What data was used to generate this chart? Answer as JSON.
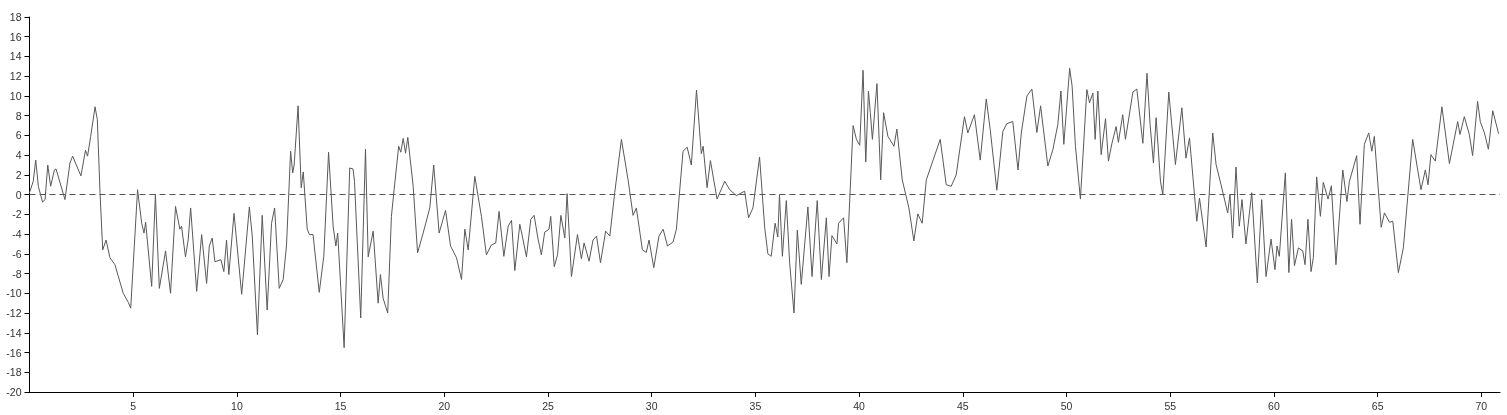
{
  "chart_data": {
    "type": "line",
    "xlim": [
      0,
      70.9
    ],
    "ylim": [
      -20,
      18
    ],
    "xticks": [
      5,
      10,
      15,
      20,
      25,
      30,
      35,
      40,
      45,
      50,
      55,
      60,
      65,
      70
    ],
    "yticks": [
      -20,
      -18,
      -16,
      -14,
      -12,
      -10,
      -8,
      -6,
      -4,
      -2,
      0,
      2,
      4,
      6,
      8,
      10,
      12,
      14,
      16,
      18
    ],
    "grid": false,
    "marker": "none",
    "line_style": "solid",
    "ref_lines": [
      {
        "axis": "y",
        "value": 0,
        "color": "#555555",
        "line_style": "dashed"
      }
    ],
    "series": [
      {
        "color": "#595959",
        "x": [
          0,
          0.18,
          0.3,
          0.43,
          0.63,
          0.75,
          0.88,
          1.02,
          1.2,
          1.28,
          1.71,
          1.95,
          2.08,
          2.48,
          2.7,
          2.8,
          2.95,
          3.16,
          3.27,
          3.4,
          3.53,
          3.69,
          3.88,
          4.12,
          4.52,
          4.76,
          4.88,
          5.21,
          5.41,
          5.52,
          5.6,
          5.89,
          6.07,
          6.26,
          6.56,
          6.8,
          7.04,
          7.25,
          7.33,
          7.52,
          7.65,
          7.77,
          8.06,
          8.3,
          8.54,
          8.67,
          8.81,
          8.94,
          9.23,
          9.37,
          9.5,
          9.61,
          9.86,
          10.23,
          10.44,
          10.6,
          10.74,
          10.99,
          11.22,
          11.46,
          11.67,
          11.82,
          12.04,
          12.23,
          12.39,
          12.59,
          12.69,
          12.76,
          12.95,
          13.1,
          13.2,
          13.39,
          13.5,
          13.67,
          13.97,
          14.19,
          14.42,
          14.64,
          14.77,
          14.86,
          15.17,
          15.44,
          15.6,
          15.67,
          15.97,
          16.2,
          16.33,
          16.57,
          16.81,
          16.92,
          17.05,
          17.27,
          17.45,
          17.58,
          17.8,
          17.9,
          18.02,
          18.13,
          18.24,
          18.5,
          18.71,
          18.98,
          19.3,
          19.49,
          19.75,
          20.06,
          20.3,
          20.59,
          20.83,
          20.99,
          21.15,
          21.47,
          21.79,
          22.03,
          22.27,
          22.48,
          22.64,
          22.87,
          23.08,
          23.24,
          23.4,
          23.64,
          23.77,
          23.96,
          24.17,
          24.33,
          24.52,
          24.68,
          24.84,
          25.05,
          25.13,
          25.3,
          25.46,
          25.62,
          25.81,
          25.92,
          26.13,
          26.42,
          26.61,
          26.74,
          26.98,
          27.17,
          27.34,
          27.53,
          27.78,
          27.98,
          28.22,
          28.54,
          28.86,
          29.1,
          29.26,
          29.55,
          29.74,
          29.87,
          30.1,
          30.35,
          30.55,
          30.76,
          31.03,
          31.19,
          31.51,
          31.71,
          31.91,
          32.16,
          32.39,
          32.48,
          32.67,
          32.83,
          33.15,
          33.52,
          33.76,
          34.08,
          34.48,
          34.67,
          34.88,
          35.2,
          35.45,
          35.6,
          35.76,
          35.95,
          36.08,
          36.16,
          36.3,
          36.49,
          36.65,
          36.86,
          37.02,
          37.21,
          37.53,
          37.73,
          37.98,
          38.18,
          38.42,
          38.55,
          38.69,
          38.93,
          39.01,
          39.25,
          39.41,
          39.71,
          39.87,
          40.03,
          40.19,
          40.32,
          40.45,
          40.54,
          40.64,
          40.86,
          41.04,
          41.18,
          41.39,
          41.68,
          41.82,
          42.08,
          42.4,
          42.64,
          42.83,
          43.04,
          43.24,
          43.91,
          44.2,
          44.44,
          44.68,
          45.08,
          45.24,
          45.56,
          45.84,
          46.13,
          46.32,
          46.64,
          46.93,
          47.12,
          47.41,
          47.66,
          47.82,
          48.09,
          48.33,
          48.57,
          48.75,
          49.1,
          49.34,
          49.58,
          49.73,
          49.87,
          50.15,
          50.27,
          50.43,
          50.67,
          50.98,
          51.11,
          51.27,
          51.38,
          51.51,
          51.67,
          51.88,
          52.02,
          52.19,
          52.39,
          52.5,
          52.71,
          52.84,
          53.2,
          53.39,
          53.68,
          53.88,
          54.03,
          54.19,
          54.32,
          54.53,
          54.64,
          54.93,
          55.25,
          55.56,
          55.76,
          55.93,
          56.28,
          56.41,
          56.73,
          57.05,
          57.21,
          57.45,
          57.77,
          57.88,
          58.01,
          58.17,
          58.33,
          58.46,
          58.65,
          58.93,
          59.2,
          59.41,
          59.62,
          59.86,
          60.05,
          60.15,
          60.26,
          60.55,
          60.72,
          60.85,
          60.99,
          61.18,
          61.39,
          61.5,
          61.64,
          61.79,
          61.9,
          62.06,
          62.24,
          62.38,
          62.61,
          62.77,
          62.99,
          63.32,
          63.52,
          63.64,
          63.99,
          64.15,
          64.36,
          64.57,
          64.72,
          64.84,
          65.17,
          65.33,
          65.57,
          65.73,
          66.0,
          66.24,
          66.69,
          67.09,
          67.3,
          67.43,
          67.57,
          67.78,
          68.1,
          68.46,
          68.86,
          68.97,
          69.18,
          69.42,
          69.58,
          69.82,
          69.95,
          70.15,
          70.34,
          70.55,
          70.83
        ],
        "values": [
          0.2,
          1.35,
          3.5,
          0.8,
          -0.75,
          -0.5,
          3.0,
          0.85,
          2.5,
          2.6,
          -0.5,
          3.2,
          3.9,
          1.9,
          4.5,
          3.9,
          5.9,
          8.9,
          7.6,
          0.2,
          -5.6,
          -4.6,
          -6.4,
          -7.1,
          -10.0,
          -10.9,
          -11.5,
          0.5,
          -2.9,
          -3.9,
          -2.8,
          -9.3,
          0,
          -9.5,
          -5.7,
          -10.0,
          -1.2,
          -3.5,
          -3.2,
          -6.3,
          -4.6,
          -1.35,
          -9.8,
          -4.05,
          -9.0,
          -5.2,
          -4.4,
          -6.8,
          -6.6,
          -7.8,
          -4.6,
          -8.1,
          -1.9,
          -10.1,
          -5.1,
          -1.25,
          -4.2,
          -14.2,
          -2.1,
          -11.7,
          -2.9,
          -1.35,
          -9.5,
          -8.6,
          -5.2,
          4.4,
          2.2,
          3.0,
          9.0,
          0.7,
          2.3,
          -3.5,
          -4.05,
          -4.05,
          -9.9,
          -6.25,
          4.3,
          -3.2,
          -5.2,
          -3.9,
          -15.5,
          2.7,
          2.6,
          1.35,
          -12.5,
          4.6,
          -6.3,
          -3.7,
          -11.0,
          -8.1,
          -10.5,
          -12.0,
          -2.2,
          0.5,
          4.9,
          4.3,
          5.7,
          4.2,
          5.8,
          0.85,
          -5.9,
          -3.9,
          -1.35,
          3.0,
          -3.9,
          -1.6,
          -5.2,
          -6.4,
          -8.6,
          -3.5,
          -5.6,
          1.85,
          -2.2,
          -6.1,
          -5.1,
          -4.9,
          -1.7,
          -6.25,
          -3.2,
          -2.6,
          -7.7,
          -3.0,
          -4.3,
          -6.3,
          -2.5,
          -2.1,
          -4.5,
          -6.1,
          -3.8,
          -3.5,
          -2.2,
          -7.3,
          -6.1,
          -2.1,
          -4.4,
          0.1,
          -8.3,
          -4.05,
          -6.5,
          -4.9,
          -6.75,
          -4.6,
          -4.2,
          -6.9,
          -3.7,
          -4.2,
          0.25,
          5.6,
          1.5,
          -2.1,
          -1.35,
          -5.6,
          -5.85,
          -4.6,
          -7.4,
          -4.2,
          -3.5,
          -5.2,
          -4.8,
          -3.5,
          4.4,
          4.8,
          3.0,
          10.6,
          4.15,
          4.9,
          0.7,
          3.45,
          -0.45,
          1.35,
          0.5,
          -0.1,
          0.35,
          -2.35,
          -1.35,
          3.8,
          -3.4,
          -6.0,
          -6.25,
          -2.9,
          -4.3,
          0,
          -6.25,
          -0.6,
          -6.9,
          -12.0,
          -3.6,
          -9.1,
          -1.25,
          -8.3,
          -0.6,
          -8.6,
          -2.35,
          -8.3,
          -4.15,
          -5.0,
          -2.9,
          -2.35,
          -6.9,
          7.0,
          5.6,
          5.0,
          12.6,
          3.3,
          10.5,
          8.3,
          5.6,
          11.25,
          1.5,
          8.3,
          5.9,
          4.9,
          6.65,
          1.5,
          -1.35,
          -4.7,
          -1.95,
          -2.9,
          1.5,
          5.6,
          1.0,
          0.85,
          2.0,
          7.9,
          6.25,
          8.1,
          3.5,
          9.7,
          6.6,
          0.45,
          6.4,
          7.2,
          7.4,
          2.5,
          6.25,
          10.0,
          10.7,
          6.3,
          9.0,
          2.9,
          4.55,
          7.1,
          10.5,
          5.1,
          12.8,
          11.0,
          4.9,
          -0.45,
          10.65,
          9.3,
          10.3,
          5.6,
          10.5,
          4.05,
          7.7,
          3.4,
          5.2,
          6.9,
          5.3,
          8.1,
          5.6,
          10.4,
          10.7,
          5.2,
          12.3,
          7.1,
          3.2,
          7.8,
          1.35,
          0,
          10.4,
          3.05,
          8.8,
          3.7,
          5.75,
          -2.7,
          -0.35,
          -5.3,
          6.25,
          3.05,
          1.0,
          -1.85,
          0,
          -4.4,
          2.8,
          -3.2,
          -0.5,
          -5.0,
          0.2,
          -8.95,
          -0.5,
          -8.3,
          -4.5,
          -7.6,
          -5.2,
          -6.25,
          2.2,
          -7.9,
          -2.5,
          -7.2,
          -5.4,
          -5.7,
          -7.1,
          -2.5,
          -7.8,
          -6.4,
          1.8,
          -2.2,
          1.25,
          -0.45,
          0.9,
          -7.1,
          2.5,
          -0.7,
          1.35,
          3.95,
          -3.0,
          5.1,
          6.25,
          4.4,
          5.9,
          -3.3,
          -1.85,
          -2.8,
          -2.7,
          -7.9,
          -5.4,
          5.6,
          0.5,
          2.5,
          1.0,
          4.05,
          3.4,
          8.9,
          3.15,
          7.4,
          6.1,
          7.9,
          6.1,
          3.95,
          9.45,
          7.4,
          6.25,
          4.6,
          8.5,
          6.2
        ]
      }
    ]
  }
}
